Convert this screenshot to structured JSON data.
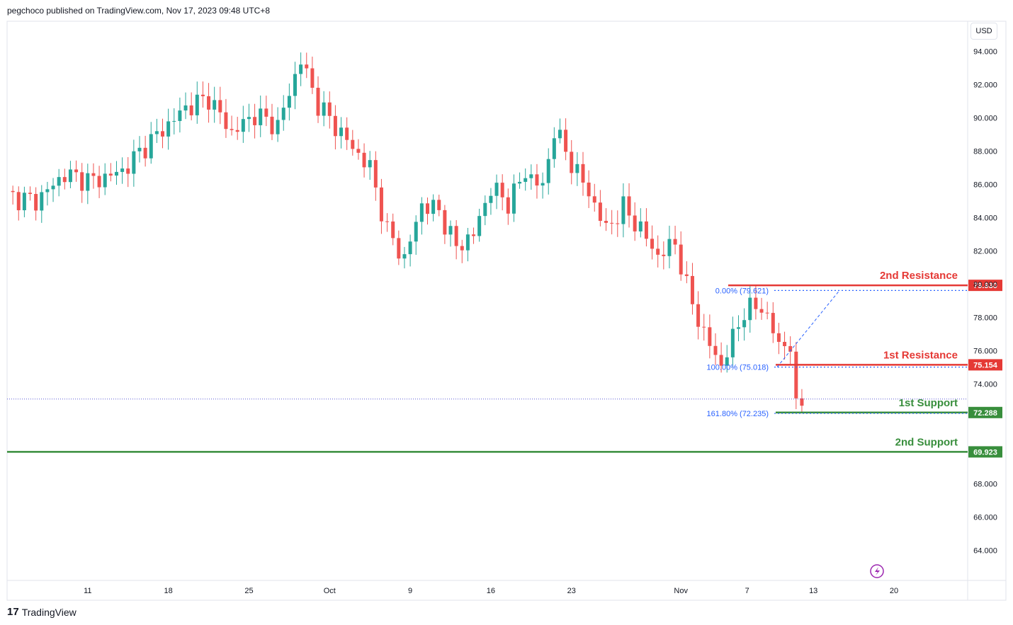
{
  "header": {
    "text": "pegchoco published on TradingView.com, Nov 17, 2023 09:48 UTC+8"
  },
  "currency": "USD",
  "footer": {
    "brand": "TradingView",
    "mark": "17"
  },
  "colors": {
    "up": "#26a69a",
    "down": "#ef5350",
    "resistance": "#e53935",
    "support": "#388e3c",
    "fib": "#2962ff"
  },
  "chart_data": {
    "type": "candlestick",
    "ylim": [
      62.2,
      95.8
    ],
    "y_ticks": [
      "94.000",
      "92.000",
      "90.000",
      "88.000",
      "86.000",
      "84.000",
      "82.000",
      "80.000",
      "78.000",
      "76.000",
      "74.000",
      "68.000",
      "66.000",
      "64.000"
    ],
    "x_ticks": [
      "11",
      "18",
      "25",
      "Oct",
      "9",
      "16",
      "23",
      "Nov",
      "7",
      "13",
      "20"
    ],
    "close_path": [
      [
        0,
        85.3
      ],
      [
        5,
        85.0
      ],
      [
        10,
        86.6
      ],
      [
        15,
        86.2
      ],
      [
        20,
        86.8
      ],
      [
        24,
        88.3
      ],
      [
        28,
        89.6
      ],
      [
        31,
        90.6
      ],
      [
        35,
        91.2
      ],
      [
        39,
        89.1
      ],
      [
        43,
        90.2
      ],
      [
        47,
        89.5
      ],
      [
        51,
        93.5
      ],
      [
        54,
        90.8
      ],
      [
        57,
        89.5
      ],
      [
        60,
        88.2
      ],
      [
        63,
        87.0
      ],
      [
        66,
        83.2
      ],
      [
        69,
        81.5
      ],
      [
        72,
        84.8
      ],
      [
        75,
        84.4
      ],
      [
        78,
        82.2
      ],
      [
        81,
        83.0
      ],
      [
        84,
        85.8
      ],
      [
        87,
        84.9
      ],
      [
        90,
        86.7
      ],
      [
        93,
        85.8
      ],
      [
        95,
        89.3
      ],
      [
        98,
        87.3
      ],
      [
        101,
        85.5
      ],
      [
        104,
        83.3
      ],
      [
        107,
        84.6
      ],
      [
        110,
        83.3
      ],
      [
        113,
        81.7
      ],
      [
        116,
        82.5
      ],
      [
        118,
        79.8
      ],
      [
        121,
        77.0
      ],
      [
        124,
        75.1
      ],
      [
        128,
        78.4
      ],
      [
        131,
        78.7
      ],
      [
        134,
        76.4
      ],
      [
        136,
        76.3
      ],
      [
        137,
        72.5
      ],
      [
        138,
        72.9
      ]
    ],
    "levels": [
      {
        "name": "2nd Resistance",
        "value": 79.93,
        "label": "79.930",
        "type": "resistance"
      },
      {
        "name": "1st Resistance",
        "value": 75.154,
        "label": "75.154",
        "type": "resistance"
      },
      {
        "name": "1st Support",
        "value": 72.288,
        "label": "72.288",
        "type": "support"
      },
      {
        "name": "2nd Support",
        "value": 69.923,
        "label": "69.923",
        "type": "support"
      }
    ],
    "fib_levels": [
      {
        "label": "0.00% (79.621)",
        "value": 79.621
      },
      {
        "label": "100.00% (75.018)",
        "value": 75.018
      },
      {
        "label": "161.80% (72.235)",
        "value": 72.235
      }
    ],
    "last_price": 73.1
  }
}
